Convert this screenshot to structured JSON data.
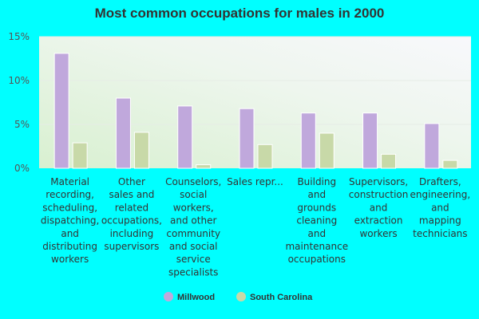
{
  "chart_data": {
    "type": "bar",
    "title": "Most common occupations for males in 2000",
    "categories": [
      "Material recording, scheduling, dispatching, and distributing workers",
      "Other sales and related occupations, including supervisors",
      "Counselors, social workers, and other community and social service specialists",
      "Sales repr...",
      "Building and grounds cleaning and maintenance occupations",
      "Supervisors, construction and extraction workers",
      "Drafters, engineering, and mapping technicians"
    ],
    "category_lines": [
      [
        "Material",
        "recording,",
        "scheduling,",
        "dispatching,",
        "and",
        "distributing",
        "workers"
      ],
      [
        "Other",
        "sales and",
        "related",
        "occupations,",
        "including",
        "supervisors"
      ],
      [
        "Counselors,",
        "social",
        "workers,",
        "and other",
        "community",
        "and social",
        "service",
        "specialists"
      ],
      [
        "Sales repr..."
      ],
      [
        "Building",
        "and",
        "grounds",
        "cleaning",
        "and",
        "maintenance",
        "occupations"
      ],
      [
        "Supervisors,",
        "construction",
        "and",
        "extraction",
        "workers"
      ],
      [
        "Drafters,",
        "engineering,",
        "and",
        "mapping",
        "technicians"
      ]
    ],
    "series": [
      {
        "name": "Millwood",
        "color": "#c0a8dc",
        "values": [
          13.1,
          8.0,
          7.1,
          6.8,
          6.3,
          6.3,
          5.1
        ]
      },
      {
        "name": "South Carolina",
        "color": "#c8d9a8",
        "values": [
          2.9,
          4.1,
          0.4,
          2.7,
          4.0,
          1.6,
          0.9
        ]
      }
    ],
    "yticks": [
      "0%",
      "5%",
      "10%",
      "15%"
    ],
    "ytick_values": [
      0,
      5,
      10,
      15
    ],
    "ylim": [
      0,
      15
    ],
    "grid": true,
    "legend_position": "bottom-center"
  }
}
